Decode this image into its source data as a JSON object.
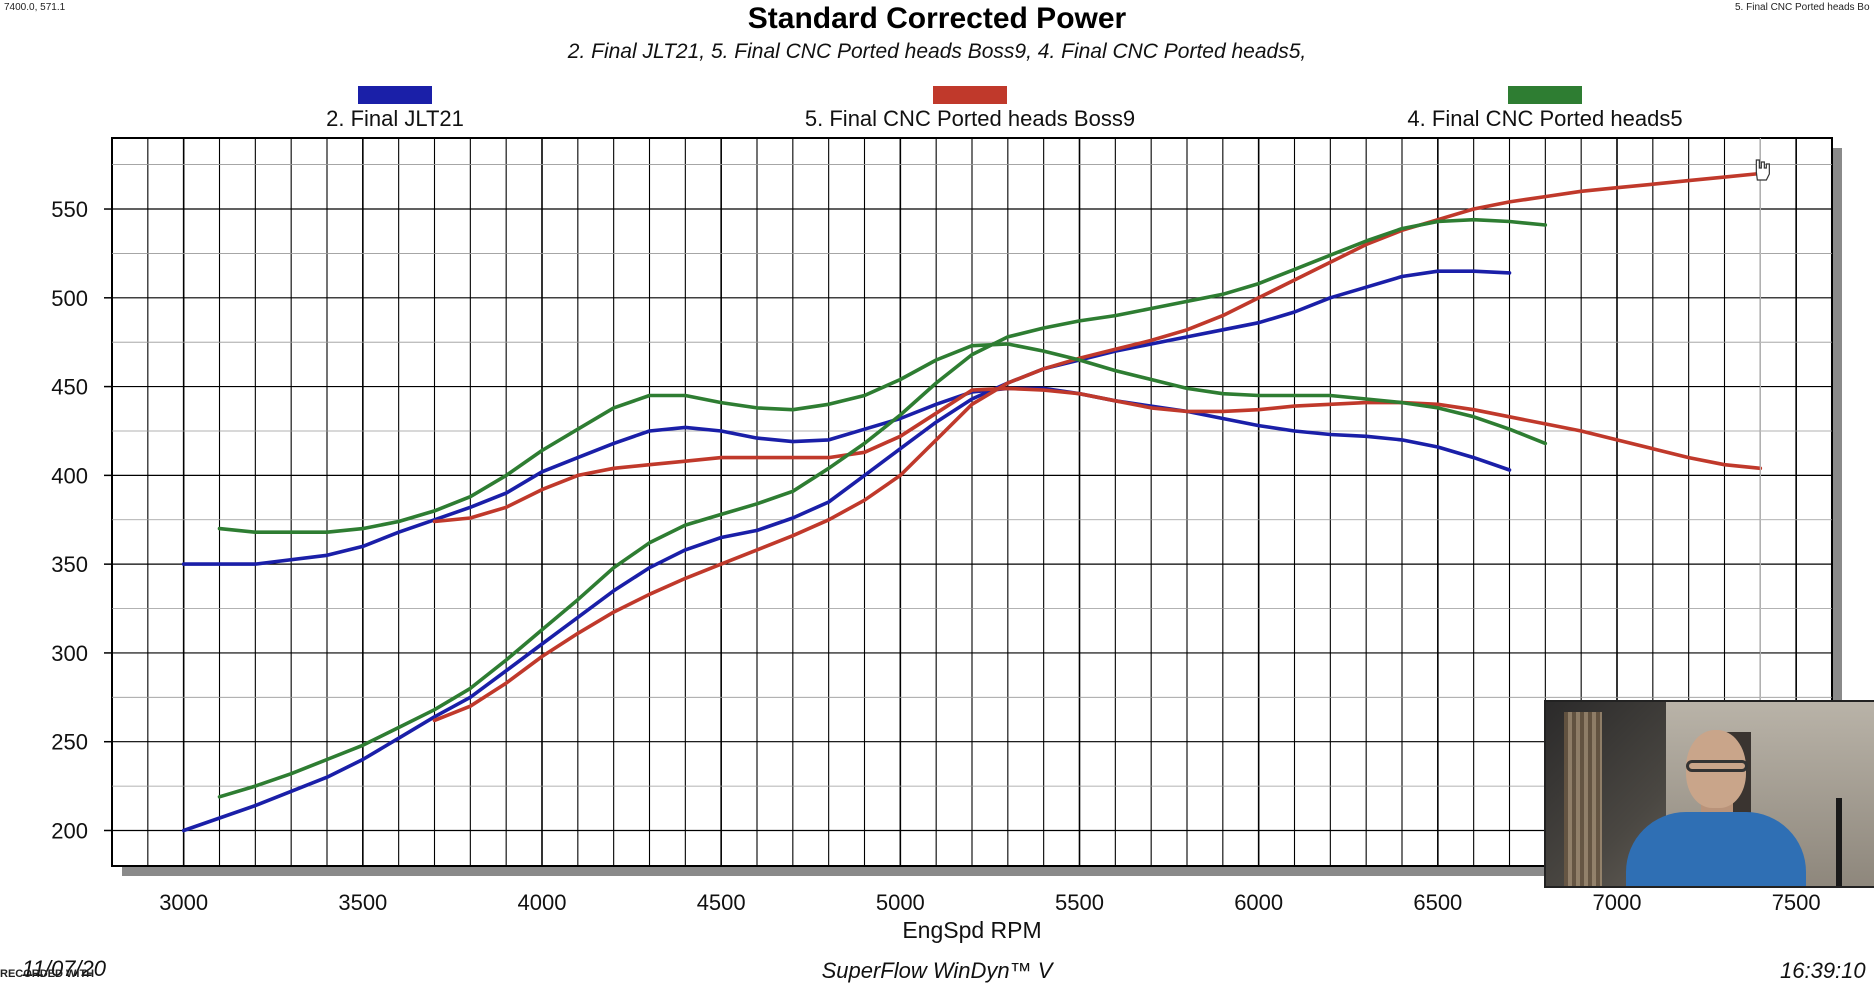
{
  "corner_left": "7400.0, 571.1",
  "corner_right": "5. Final CNC Ported heads Bo",
  "footer": {
    "date": "11/07/20",
    "software": "SuperFlow WinDyn™ V",
    "time": "16:39:10",
    "watermark": "RECORDED WITH"
  },
  "colors": {
    "blue": "#1a1fa8",
    "red": "#c0392b",
    "green": "#2e7d32"
  },
  "chart_data": {
    "type": "line",
    "title": "Standard Corrected Power",
    "subtitle": "2. Final JLT21, 5. Final CNC Ported heads Boss9, 4. Final CNC Ported heads5,",
    "xlabel": "EngSpd RPM",
    "ylabel": "",
    "xlim": [
      2800,
      7600
    ],
    "ylim": [
      180,
      590
    ],
    "xticks": [
      3000,
      3500,
      4000,
      4500,
      5000,
      5500,
      6000,
      6500,
      7000,
      7500
    ],
    "yticks": [
      200,
      250,
      300,
      350,
      400,
      450,
      500,
      550
    ],
    "x_minor_step": 100,
    "grid": true,
    "legend_position": "top",
    "cursor_x": 7400,
    "series": [
      {
        "name": "2. Final JLT21",
        "color": "#1a1fa8",
        "curves": [
          {
            "x": [
              3000,
              3200,
              3400,
              3500,
              3600,
              3700,
              3800,
              3900,
              4000,
              4100,
              4200,
              4300,
              4400,
              4500,
              4600,
              4700,
              4800,
              4900,
              5000,
              5100,
              5200,
              5300,
              5400,
              5500,
              5600,
              5700,
              5800,
              5900,
              6000,
              6100,
              6200,
              6300,
              6400,
              6500,
              6600,
              6700
            ],
            "y": [
              350,
              350,
              355,
              360,
              368,
              375,
              382,
              390,
              402,
              410,
              418,
              425,
              427,
              425,
              421,
              419,
              420,
              426,
              432,
              440,
              447,
              449,
              449,
              446,
              442,
              439,
              436,
              432,
              428,
              425,
              423,
              422,
              420,
              416,
              410,
              403
            ]
          },
          {
            "x": [
              3000,
              3200,
              3400,
              3500,
              3600,
              3700,
              3800,
              3900,
              4000,
              4100,
              4200,
              4300,
              4400,
              4500,
              4600,
              4700,
              4800,
              4900,
              5000,
              5100,
              5200,
              5300,
              5400,
              5500,
              5600,
              5700,
              5800,
              5900,
              6000,
              6100,
              6200,
              6300,
              6400,
              6500,
              6600,
              6700
            ],
            "y": [
              200,
              214,
              230,
              240,
              252,
              264,
              275,
              290,
              305,
              320,
              335,
              348,
              358,
              365,
              369,
              376,
              385,
              400,
              415,
              430,
              443,
              452,
              460,
              465,
              470,
              474,
              478,
              482,
              486,
              492,
              500,
              506,
              512,
              515,
              515,
              514
            ]
          }
        ]
      },
      {
        "name": "5. Final CNC Ported heads Boss9",
        "color": "#c0392b",
        "curves": [
          {
            "x": [
              3700,
              3800,
              3900,
              4000,
              4100,
              4200,
              4300,
              4400,
              4500,
              4600,
              4700,
              4800,
              4900,
              5000,
              5100,
              5200,
              5300,
              5400,
              5500,
              5600,
              5700,
              5800,
              5900,
              6000,
              6100,
              6200,
              6300,
              6400,
              6500,
              6600,
              6700,
              6800,
              6900,
              7000,
              7100,
              7200,
              7300,
              7400
            ],
            "y": [
              374,
              376,
              382,
              392,
              400,
              404,
              406,
              408,
              410,
              410,
              410,
              410,
              413,
              422,
              435,
              448,
              449,
              448,
              446,
              442,
              438,
              436,
              436,
              437,
              439,
              440,
              441,
              441,
              440,
              437,
              433,
              429,
              425,
              420,
              415,
              410,
              406,
              404
            ]
          },
          {
            "x": [
              3700,
              3800,
              3900,
              4000,
              4100,
              4200,
              4300,
              4400,
              4500,
              4600,
              4700,
              4800,
              4900,
              5000,
              5100,
              5200,
              5300,
              5400,
              5500,
              5600,
              5700,
              5800,
              5900,
              6000,
              6100,
              6200,
              6300,
              6400,
              6500,
              6600,
              6700,
              6800,
              6900,
              7000,
              7100,
              7200,
              7300,
              7400
            ],
            "y": [
              262,
              270,
              283,
              298,
              311,
              323,
              333,
              342,
              350,
              358,
              366,
              375,
              386,
              400,
              420,
              440,
              452,
              460,
              466,
              471,
              476,
              482,
              490,
              500,
              510,
              520,
              530,
              538,
              544,
              550,
              554,
              557,
              560,
              562,
              564,
              566,
              568,
              570
            ]
          }
        ]
      },
      {
        "name": "4. Final CNC Ported heads5",
        "color": "#2e7d32",
        "curves": [
          {
            "x": [
              3100,
              3200,
              3300,
              3400,
              3500,
              3600,
              3700,
              3800,
              3900,
              4000,
              4100,
              4200,
              4300,
              4400,
              4500,
              4600,
              4700,
              4800,
              4900,
              5000,
              5100,
              5200,
              5300,
              5400,
              5500,
              5600,
              5700,
              5800,
              5900,
              6000,
              6100,
              6200,
              6300,
              6400,
              6500,
              6600,
              6700,
              6800
            ],
            "y": [
              370,
              368,
              368,
              368,
              370,
              374,
              380,
              388,
              400,
              414,
              426,
              438,
              445,
              445,
              441,
              438,
              437,
              440,
              445,
              454,
              465,
              473,
              474,
              470,
              465,
              459,
              454,
              449,
              446,
              445,
              445,
              445,
              443,
              441,
              438,
              433,
              426,
              418
            ]
          },
          {
            "x": [
              3100,
              3200,
              3300,
              3400,
              3500,
              3600,
              3700,
              3800,
              3900,
              4000,
              4100,
              4200,
              4300,
              4400,
              4500,
              4600,
              4700,
              4800,
              4900,
              5000,
              5100,
              5200,
              5300,
              5400,
              5500,
              5600,
              5700,
              5800,
              5900,
              6000,
              6100,
              6200,
              6300,
              6400,
              6500,
              6600,
              6700,
              6800
            ],
            "y": [
              219,
              225,
              232,
              240,
              248,
              258,
              268,
              280,
              296,
              313,
              330,
              348,
              362,
              372,
              378,
              384,
              391,
              404,
              418,
              434,
              452,
              468,
              478,
              483,
              487,
              490,
              494,
              498,
              502,
              508,
              516,
              524,
              532,
              539,
              543,
              544,
              543,
              541
            ]
          }
        ]
      }
    ]
  }
}
